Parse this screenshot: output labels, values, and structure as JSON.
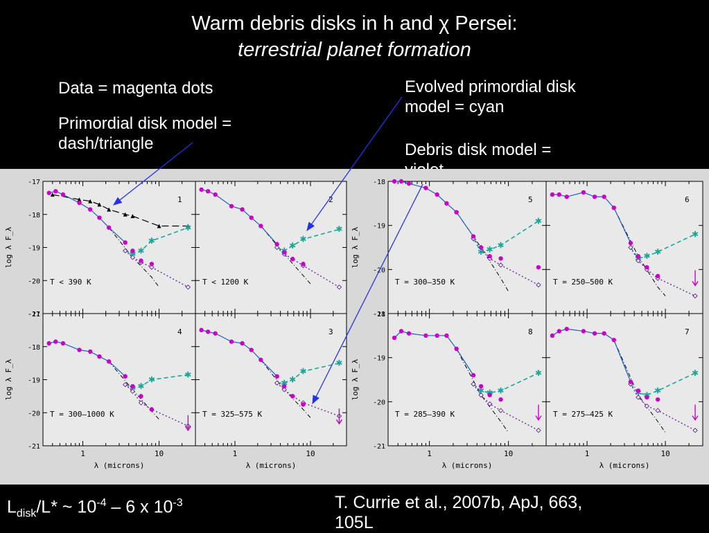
{
  "header": {
    "title": "Warm debris disks in h and χ Persei:",
    "subtitle": "terrestrial planet formation"
  },
  "notes": {
    "data": "Data = magenta dots",
    "primordial_line1": "Primordial disk model =",
    "primordial_line2": "dash/triangle",
    "evolved_line1": "Evolved primordial disk",
    "evolved_line2": "model = cyan",
    "debris_line1": "Debris disk model =",
    "debris_line2": "violet"
  },
  "footer": {
    "ratio_prefix": "L",
    "ratio_sub": "disk",
    "ratio_mid": "/L* ~ 10",
    "ratio_exp1": "-4",
    "ratio_mid2": " – 6 x 10",
    "ratio_exp2": "-3",
    "citation_line1": "T. Currie et al., 2007b, ApJ, 663,",
    "citation_line2": "105L"
  },
  "colors": {
    "background": "#000000",
    "plot_bg": "#d8d8d8",
    "data": "#cc00cc",
    "primordial": "#000000",
    "evolved": "#1aa59a",
    "debris": "#6a2a9a",
    "photosphere": "#000000",
    "stellar": "#1a5fc8",
    "arrow": "#2233ee"
  },
  "chart_data": [
    {
      "type": "scatter",
      "group": "left",
      "xlabel": "λ (microns)",
      "ylabel": "log λ F_λ",
      "xscale": "log",
      "xlim": [
        0.3,
        30
      ],
      "ylim": [
        -21,
        -17
      ],
      "yticks": [
        -17,
        -18,
        -19,
        -20,
        -21
      ],
      "panels": [
        {
          "panel_number": "1",
          "temperature_label": "T < 390 K",
          "data_x": [
            0.36,
            0.44,
            0.55,
            0.9,
            1.25,
            1.65,
            2.2,
            3.6,
            4.5,
            5.8,
            8.0
          ],
          "data_y": [
            -17.35,
            -17.3,
            -17.4,
            -17.65,
            -17.85,
            -18.1,
            -18.4,
            -18.85,
            -19.1,
            -19.4,
            -19.5
          ],
          "primordial_x": [
            0.4,
            0.9,
            1.25,
            1.65,
            2.2,
            3.6,
            4.5,
            10,
            24
          ],
          "primordial_y": [
            -17.4,
            -17.55,
            -17.6,
            -17.7,
            -17.85,
            -18.0,
            -18.05,
            -18.35,
            -18.35
          ],
          "evolved_x": [
            3.6,
            4.5,
            5.8,
            8.0,
            24
          ],
          "evolved_y": [
            -19.1,
            -19.2,
            -19.1,
            -18.8,
            -18.4
          ],
          "debris_x": [
            3.6,
            4.5,
            5.8,
            8.0,
            24
          ],
          "debris_y": [
            -19.1,
            -19.3,
            -19.45,
            -19.6,
            -20.2
          ],
          "photosphere_x": [
            2.2,
            4.5,
            8.0,
            10
          ],
          "photosphere_y": [
            -18.4,
            -19.3,
            -19.9,
            -20.2
          ]
        },
        {
          "panel_number": "2",
          "temperature_label": "T < 1200 K",
          "data_x": [
            0.36,
            0.44,
            0.55,
            0.9,
            1.25,
            1.65,
            2.2,
            3.6,
            4.5,
            5.8,
            8.0
          ],
          "data_y": [
            -17.25,
            -17.3,
            -17.4,
            -17.75,
            -17.85,
            -18.1,
            -18.35,
            -18.9,
            -19.15,
            -19.35,
            -19.5
          ],
          "evolved_x": [
            3.6,
            4.5,
            5.8,
            8.0,
            24
          ],
          "evolved_y": [
            -19.0,
            -19.1,
            -18.95,
            -18.75,
            -18.45
          ],
          "debris_x": [
            3.6,
            4.5,
            5.8,
            8.0,
            24
          ],
          "debris_y": [
            -19.0,
            -19.2,
            -19.35,
            -19.55,
            -20.2
          ],
          "photosphere_x": [
            2.2,
            4.5,
            8.0,
            10
          ],
          "photosphere_y": [
            -18.35,
            -19.2,
            -19.85,
            -20.1
          ]
        },
        {
          "panel_number": "4",
          "temperature_label": "T = 300–1000 K",
          "data_x": [
            0.36,
            0.44,
            0.55,
            0.9,
            1.25,
            1.65,
            2.2,
            3.6,
            4.5,
            5.8,
            8.0
          ],
          "data_y": [
            -17.9,
            -17.85,
            -17.9,
            -18.1,
            -18.15,
            -18.3,
            -18.45,
            -18.9,
            -19.2,
            -19.5,
            -19.9
          ],
          "evolved_x": [
            3.6,
            4.5,
            5.8,
            8.0,
            24
          ],
          "evolved_y": [
            -19.15,
            -19.25,
            -19.2,
            -19.0,
            -18.85
          ],
          "debris_x": [
            3.6,
            4.5,
            5.8,
            8.0,
            24
          ],
          "debris_y": [
            -19.15,
            -19.35,
            -19.7,
            -19.9,
            -20.4
          ],
          "photosphere_x": [
            2.2,
            4.5,
            8.0,
            10
          ],
          "photosphere_y": [
            -18.45,
            -19.3,
            -19.95,
            -20.2
          ],
          "upper_limit_x": 24,
          "upper_limit_y": -20.45
        },
        {
          "panel_number": "3",
          "temperature_label": "T = 325–575 K",
          "data_x": [
            0.36,
            0.44,
            0.55,
            0.9,
            1.25,
            1.65,
            2.2,
            3.6,
            4.5,
            5.8,
            8.0
          ],
          "data_y": [
            -17.5,
            -17.55,
            -17.6,
            -17.85,
            -17.9,
            -18.1,
            -18.4,
            -18.9,
            -19.2,
            -19.5,
            -19.75
          ],
          "evolved_x": [
            3.6,
            4.5,
            5.8,
            8.0,
            24
          ],
          "evolved_y": [
            -19.1,
            -19.1,
            -19.0,
            -18.75,
            -18.5
          ],
          "debris_x": [
            3.6,
            4.5,
            5.8,
            8.0,
            24
          ],
          "debris_y": [
            -19.1,
            -19.3,
            -19.5,
            -19.7,
            -20.1
          ],
          "photosphere_x": [
            2.2,
            4.5,
            8.0,
            10
          ],
          "photosphere_y": [
            -18.4,
            -19.3,
            -19.9,
            -20.15
          ],
          "upper_limit_x": 24,
          "upper_limit_y": -20.25
        }
      ]
    },
    {
      "type": "scatter",
      "group": "right",
      "xlabel": "λ (microns)",
      "ylabel": "log λ F_λ",
      "xscale": "log",
      "xlim": [
        0.3,
        30
      ],
      "ylim": [
        -21,
        -18
      ],
      "yticks": [
        -18,
        -19,
        -20,
        -21
      ],
      "panels": [
        {
          "panel_number": "5",
          "temperature_label": "T = 300–350 K",
          "data_x": [
            0.36,
            0.44,
            0.55,
            0.9,
            1.25,
            1.65,
            2.2,
            3.6,
            4.5,
            5.8,
            8.0,
            24
          ],
          "data_y": [
            -18.0,
            -18.0,
            -18.05,
            -18.15,
            -18.3,
            -18.5,
            -18.7,
            -19.25,
            -19.5,
            -19.7,
            -19.75,
            -19.95
          ],
          "evolved_x": [
            3.6,
            4.5,
            5.8,
            8.0,
            24
          ],
          "evolved_y": [
            -19.3,
            -19.6,
            -19.55,
            -19.45,
            -18.9
          ],
          "debris_x": [
            3.6,
            4.5,
            5.8,
            8.0,
            24
          ],
          "debris_y": [
            -19.3,
            -19.5,
            -19.75,
            -19.9,
            -20.35
          ],
          "photosphere_x": [
            2.2,
            4.5,
            8.0,
            10
          ],
          "photosphere_y": [
            -18.7,
            -19.5,
            -20.2,
            -20.5
          ]
        },
        {
          "panel_number": "6",
          "temperature_label": "T = 250–500 K",
          "data_x": [
            0.36,
            0.44,
            0.55,
            0.9,
            1.25,
            1.65,
            2.2,
            3.6,
            4.5,
            5.8,
            8.0
          ],
          "data_y": [
            -18.3,
            -18.3,
            -18.35,
            -18.25,
            -18.35,
            -18.35,
            -18.6,
            -19.4,
            -19.7,
            -19.95,
            -20.15
          ],
          "evolved_x": [
            3.6,
            4.5,
            5.8,
            8.0,
            24
          ],
          "evolved_y": [
            -19.5,
            -19.75,
            -19.7,
            -19.6,
            -19.2
          ],
          "debris_x": [
            3.6,
            4.5,
            5.8,
            8.0,
            24
          ],
          "debris_y": [
            -19.5,
            -19.8,
            -20.0,
            -20.2,
            -20.6
          ],
          "photosphere_x": [
            2.2,
            4.5,
            8.0,
            10
          ],
          "photosphere_y": [
            -18.6,
            -19.7,
            -20.4,
            -20.6
          ],
          "upper_limit_x": 24,
          "upper_limit_y": -20.3
        },
        {
          "panel_number": "8",
          "temperature_label": "T = 285–390 K",
          "data_x": [
            0.36,
            0.44,
            0.55,
            0.9,
            1.25,
            1.65,
            2.2,
            3.6,
            4.5,
            5.8,
            8.0
          ],
          "data_y": [
            -18.55,
            -18.4,
            -18.45,
            -18.5,
            -18.5,
            -18.5,
            -18.8,
            -19.4,
            -19.65,
            -19.85,
            -19.95
          ],
          "evolved_x": [
            3.6,
            4.5,
            5.8,
            8.0,
            24
          ],
          "evolved_y": [
            -19.6,
            -19.75,
            -19.8,
            -19.75,
            -19.35
          ],
          "debris_x": [
            3.6,
            4.5,
            5.8,
            8.0,
            24
          ],
          "debris_y": [
            -19.6,
            -19.85,
            -20.05,
            -20.2,
            -20.65
          ],
          "photosphere_x": [
            2.2,
            4.5,
            8.0,
            10
          ],
          "photosphere_y": [
            -18.8,
            -19.85,
            -20.45,
            -20.7
          ],
          "upper_limit_x": 24,
          "upper_limit_y": -20.35
        },
        {
          "panel_number": "7",
          "temperature_label": "T = 275–425 K",
          "data_x": [
            0.36,
            0.44,
            0.55,
            0.9,
            1.25,
            1.65,
            2.2,
            3.6,
            4.5,
            5.8,
            8.0
          ],
          "data_y": [
            -18.5,
            -18.4,
            -18.35,
            -18.4,
            -18.45,
            -18.45,
            -18.6,
            -19.55,
            -19.75,
            -19.9,
            -19.95
          ],
          "evolved_x": [
            3.6,
            4.5,
            5.8,
            8.0,
            24
          ],
          "evolved_y": [
            -19.6,
            -19.8,
            -19.85,
            -19.75,
            -19.35
          ],
          "debris_x": [
            3.6,
            4.5,
            5.8,
            8.0,
            24
          ],
          "debris_y": [
            -19.6,
            -19.9,
            -20.1,
            -20.2,
            -20.65
          ],
          "photosphere_x": [
            2.2,
            4.5,
            8.0,
            10
          ],
          "photosphere_y": [
            -18.6,
            -19.85,
            -20.45,
            -20.7
          ],
          "upper_limit_x": 24,
          "upper_limit_y": -20.35
        }
      ]
    }
  ]
}
